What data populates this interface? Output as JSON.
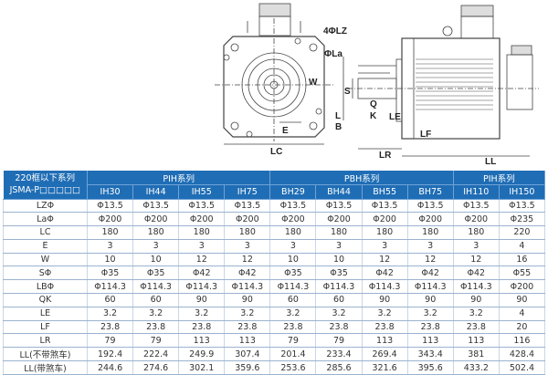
{
  "drawing": {
    "labels": {
      "lz": "4ΦLZ",
      "la": "ΦLa",
      "w": "W",
      "e": "E",
      "lc": "LC",
      "s": "S",
      "q": "Q",
      "k": "K",
      "l": "L",
      "b": "B",
      "le": "LE",
      "lf": "LF",
      "lr": "LR",
      "ll": "LL"
    }
  },
  "table": {
    "corner": [
      "220框以下系列",
      "JSMA-P□□□□□"
    ],
    "groups": [
      "PIH系列",
      "PBH系列",
      "PIH系列"
    ],
    "models": [
      "IH30",
      "IH44",
      "IH55",
      "IH75",
      "BH29",
      "BH44",
      "BH55",
      "BH75",
      "IH110",
      "IH150"
    ],
    "rows": [
      {
        "label": "LZΦ",
        "values": [
          "Φ13.5",
          "Φ13.5",
          "Φ13.5",
          "Φ13.5",
          "Φ13.5",
          "Φ13.5",
          "Φ13.5",
          "Φ13.5",
          "Φ13.5",
          "Φ13.5"
        ]
      },
      {
        "label": "LaΦ",
        "values": [
          "Φ200",
          "Φ200",
          "Φ200",
          "Φ200",
          "Φ200",
          "Φ200",
          "Φ200",
          "Φ200",
          "Φ200",
          "Φ235"
        ]
      },
      {
        "label": "LC",
        "values": [
          "180",
          "180",
          "180",
          "180",
          "180",
          "180",
          "180",
          "180",
          "180",
          "220"
        ]
      },
      {
        "label": "E",
        "values": [
          "3",
          "3",
          "3",
          "3",
          "3",
          "3",
          "3",
          "3",
          "3",
          "4"
        ]
      },
      {
        "label": "W",
        "values": [
          "10",
          "10",
          "12",
          "12",
          "10",
          "10",
          "12",
          "12",
          "12",
          "16"
        ]
      },
      {
        "label": "SΦ",
        "values": [
          "Φ35",
          "Φ35",
          "Φ42",
          "Φ42",
          "Φ35",
          "Φ35",
          "Φ42",
          "Φ42",
          "Φ42",
          "Φ55"
        ]
      },
      {
        "label": "LBΦ",
        "values": [
          "Φ114.3",
          "Φ114.3",
          "Φ114.3",
          "Φ114.3",
          "Φ114.3",
          "Φ114.3",
          "Φ114.3",
          "Φ114.3",
          "Φ114.3",
          "Φ200"
        ]
      },
      {
        "label": "QK",
        "values": [
          "60",
          "60",
          "90",
          "90",
          "60",
          "60",
          "90",
          "90",
          "90",
          "90"
        ]
      },
      {
        "label": "LE",
        "values": [
          "3.2",
          "3.2",
          "3.2",
          "3.2",
          "3.2",
          "3.2",
          "3.2",
          "3.2",
          "3.2",
          "4"
        ]
      },
      {
        "label": "LF",
        "values": [
          "23.8",
          "23.8",
          "23.8",
          "23.8",
          "23.8",
          "23.8",
          "23.8",
          "23.8",
          "23.8",
          "20"
        ]
      },
      {
        "label": "LR",
        "values": [
          "79",
          "79",
          "113",
          "113",
          "79",
          "79",
          "113",
          "113",
          "113",
          "116"
        ]
      },
      {
        "label": "LL(不带煞车)",
        "values": [
          "192.4",
          "222.4",
          "249.9",
          "307.4",
          "201.4",
          "233.4",
          "269.4",
          "343.4",
          "381",
          "428.4"
        ]
      },
      {
        "label": "LL(带煞车)",
        "values": [
          "244.6",
          "274.6",
          "302.1",
          "359.6",
          "253.6",
          "285.6",
          "321.6",
          "395.6",
          "433.2",
          "502.4"
        ]
      }
    ]
  }
}
